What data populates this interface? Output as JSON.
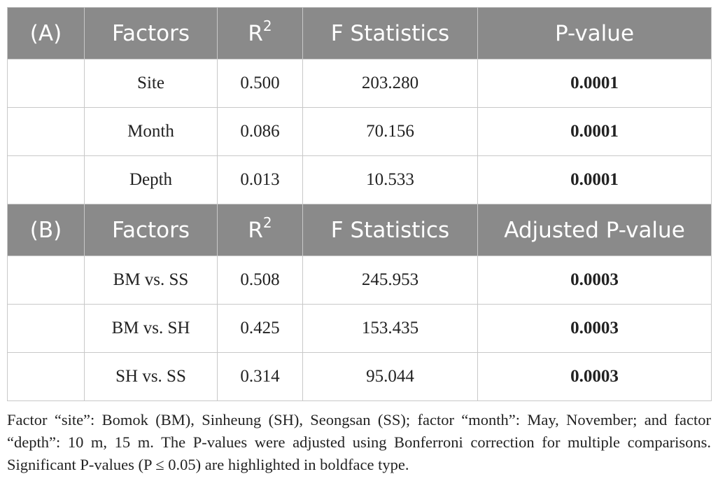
{
  "sections": [
    {
      "label": "(A)",
      "header": {
        "factors": "Factors",
        "r2_base": "R",
        "r2_sup": "2",
        "f": "F Statistics",
        "p": "P-value"
      },
      "rows": [
        [
          "Site",
          "0.500",
          "203.280",
          "0.0001"
        ],
        [
          "Month",
          "0.086",
          "70.156",
          "0.0001"
        ],
        [
          "Depth",
          "0.013",
          "10.533",
          "0.0001"
        ]
      ]
    },
    {
      "label": "(B)",
      "header": {
        "factors": "Factors",
        "r2_base": "R",
        "r2_sup": "2",
        "f": "F Statistics",
        "p": "Adjusted P-value"
      },
      "rows": [
        [
          "BM vs. SS",
          "0.508",
          "245.953",
          "0.0003"
        ],
        [
          "BM vs. SH",
          "0.425",
          "153.435",
          "0.0003"
        ],
        [
          "SH vs. SS",
          "0.314",
          "95.044",
          "0.0003"
        ]
      ]
    }
  ],
  "footnote": "Factor “site”: Bomok (BM), Sinheung (SH), Seongsan (SS); factor “month”: May, November; and factor “depth”: 10 m, 15 m. The P-values were adjusted using Bonferroni correction for multiple comparisons. Significant P-values (P ≤ 0.05) are highlighted in boldface type."
}
